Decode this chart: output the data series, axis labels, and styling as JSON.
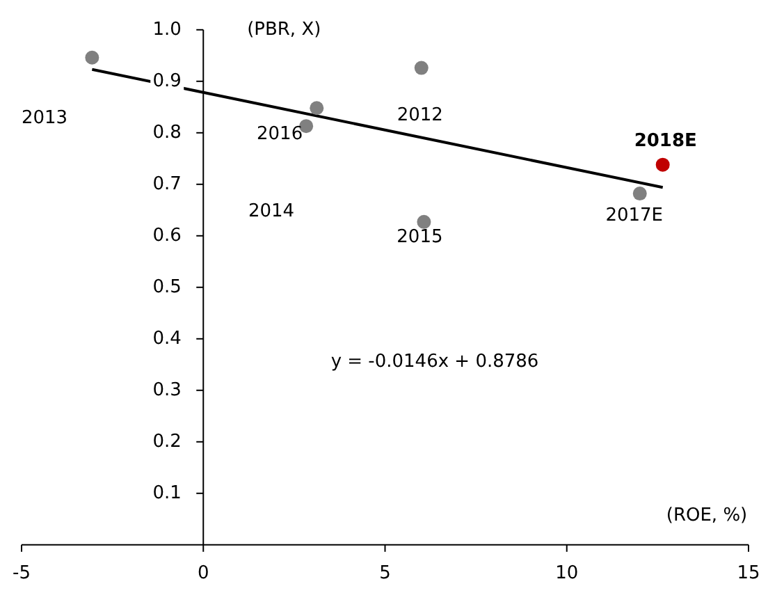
{
  "chart_data": {
    "type": "scatter",
    "xlabel": "(ROE, %)",
    "ylabel": "(PBR, X)",
    "xlim": [
      -5,
      15
    ],
    "xticks": [
      -5,
      0,
      5,
      10,
      15
    ],
    "ylim": [
      0,
      1.0
    ],
    "yticks": [
      {
        "value": 0.1,
        "label": "0.1"
      },
      {
        "value": 0.2,
        "label": "0.2"
      },
      {
        "value": 0.3,
        "label": "0.3"
      },
      {
        "value": 0.4,
        "label": "0.4"
      },
      {
        "value": 0.5,
        "label": "0.5"
      },
      {
        "value": 0.6,
        "label": "0.6"
      },
      {
        "value": 0.7,
        "label": "0.7"
      },
      {
        "value": 0.8,
        "label": "0.8"
      },
      {
        "value": 0.9,
        "label": "0.9"
      },
      {
        "value": 1.0,
        "label": "1.0"
      }
    ],
    "series": [
      {
        "type": "line",
        "color": "#000000",
        "x": [
          -3.06,
          12.64
        ],
        "values": [
          0.923,
          0.694
        ]
      },
      {
        "color": "#808080",
        "x": [
          -3.06,
          3.12,
          2.83,
          6.0,
          6.07,
          12.01
        ],
        "values": [
          0.946,
          0.848,
          0.813,
          0.926,
          0.627,
          0.682
        ]
      },
      {
        "color": "#c00000",
        "x": [
          12.64
        ],
        "values": [
          0.738
        ]
      }
    ],
    "annotations": [
      "2013",
      "2014",
      {
        "text": "2016",
        "x": 2.83,
        "y": 0.813
      },
      {
        "text": "2012",
        "x": 6.0,
        "y": 0.926
      },
      {
        "text": "2015",
        "x": 6.07,
        "y": 0.627
      },
      {
        "text": "2017E",
        "x": 12.01,
        "y": 0.682
      },
      {
        "text": "2018E",
        "x": 12.64,
        "y": 0.738
      },
      "y = -0.0146x + 0.8786"
    ]
  }
}
